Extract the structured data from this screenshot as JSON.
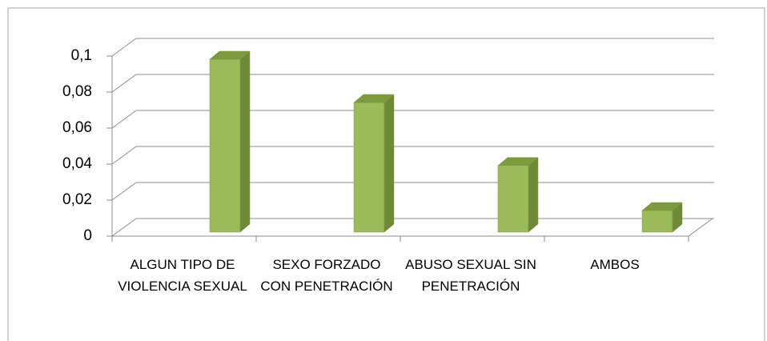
{
  "chart_data": {
    "type": "bar3d",
    "categories": [
      "ALGUN TIPO DE VIOLENCIA SEXUAL",
      "SEXO FORZADO CON PENETRACIÓN",
      "ABUSO SEXUAL SIN PENETRACIÓN",
      "AMBOS"
    ],
    "values": [
      0.096,
      0.072,
      0.037,
      0.012
    ],
    "color": "#9bbb59",
    "ylim": [
      0,
      0.1
    ],
    "yticks": [
      0,
      {
        "value": 0.02,
        "label": "0,02"
      },
      {
        "value": 0.04,
        "label": "0,04"
      },
      {
        "value": 0.06,
        "label": "0,06"
      },
      {
        "value": 0.08,
        "label": "0,08"
      },
      {
        "value": 0.1,
        "label": "0,1"
      }
    ],
    "grid": true
  }
}
